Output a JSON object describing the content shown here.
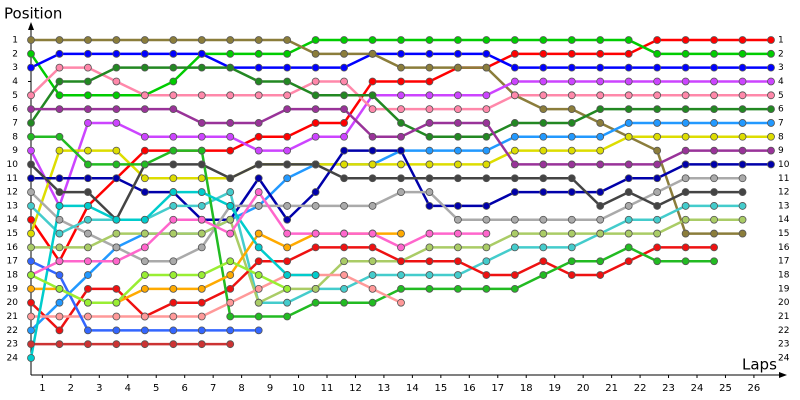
{
  "chart_data": {
    "type": "line",
    "ylabel": "Position",
    "xlabel": "Laps",
    "x": [
      0,
      1,
      2,
      3,
      4,
      5,
      6,
      7,
      8,
      9,
      10,
      11,
      12,
      13,
      14,
      15,
      16,
      17,
      18,
      19,
      20,
      21,
      22,
      23,
      24,
      25,
      26
    ],
    "xlim": [
      0,
      26
    ],
    "xticks": [
      1,
      2,
      3,
      4,
      5,
      6,
      7,
      8,
      9,
      10,
      11,
      12,
      13,
      14,
      15,
      16,
      17,
      18,
      19,
      20,
      21,
      22,
      23,
      24,
      25,
      26
    ],
    "ylim": [
      1,
      24
    ],
    "y_reversed": true,
    "yticks": [
      1,
      2,
      3,
      4,
      5,
      6,
      7,
      8,
      9,
      10,
      11,
      12,
      13,
      14,
      15,
      16,
      17,
      18,
      19,
      20,
      21,
      22,
      23,
      24
    ],
    "series": [
      {
        "color": "#ff0000",
        "values": [
          14,
          17,
          13,
          11,
          9,
          9,
          9,
          9,
          8,
          8,
          7,
          7,
          4,
          4,
          4,
          3,
          3,
          2,
          2,
          2,
          2,
          2,
          1,
          1,
          1,
          1,
          1
        ]
      },
      {
        "color": "#00cc00",
        "values": [
          2,
          5,
          5,
          5,
          5,
          4,
          2,
          2,
          2,
          2,
          1,
          1,
          1,
          1,
          1,
          1,
          1,
          1,
          1,
          1,
          1,
          1,
          2,
          2,
          2,
          2,
          2
        ]
      },
      {
        "color": "#0000ff",
        "values": [
          3,
          2,
          2,
          2,
          2,
          2,
          2,
          3,
          3,
          3,
          3,
          3,
          2,
          2,
          2,
          2,
          2,
          3,
          3,
          3,
          3,
          3,
          3,
          3,
          3,
          3,
          3
        ]
      },
      {
        "color": "#8b7d3b",
        "values": [
          1,
          1,
          1,
          1,
          1,
          1,
          1,
          1,
          1,
          1,
          2,
          2,
          2,
          3,
          3,
          3,
          3,
          5,
          6,
          6,
          7,
          8,
          9,
          15,
          15,
          15,
          null
        ]
      },
      {
        "color": "#cc44ff",
        "values": [
          9,
          13,
          7,
          7,
          8,
          8,
          8,
          8,
          9,
          9,
          8,
          8,
          5,
          5,
          5,
          5,
          5,
          4,
          4,
          4,
          4,
          4,
          4,
          4,
          4,
          4,
          4
        ]
      },
      {
        "color": "#ff88aa",
        "values": [
          5,
          3,
          3,
          4,
          5,
          5,
          5,
          5,
          5,
          5,
          4,
          4,
          6,
          6,
          6,
          6,
          6,
          5,
          5,
          5,
          5,
          5,
          5,
          5,
          5,
          5,
          5
        ]
      },
      {
        "color": "#228822",
        "values": [
          7,
          4,
          4,
          3,
          3,
          3,
          3,
          3,
          4,
          4,
          5,
          5,
          5,
          7,
          8,
          8,
          8,
          7,
          7,
          7,
          6,
          6,
          6,
          6,
          6,
          6,
          6
        ]
      },
      {
        "color": "#2299ff",
        "values": [
          22,
          20,
          18,
          16,
          15,
          15,
          15,
          14,
          13,
          11,
          10,
          10,
          10,
          9,
          9,
          9,
          9,
          8,
          8,
          8,
          8,
          7,
          7,
          7,
          7,
          7,
          7
        ]
      },
      {
        "color": "#dddd00",
        "values": [
          15,
          9,
          9,
          9,
          11,
          11,
          11,
          11,
          10,
          10,
          10,
          10,
          10,
          10,
          10,
          10,
          10,
          9,
          9,
          9,
          9,
          8,
          8,
          8,
          8,
          8,
          8
        ]
      },
      {
        "color": "#993399",
        "values": [
          6,
          6,
          6,
          6,
          6,
          6,
          7,
          7,
          7,
          6,
          6,
          6,
          8,
          8,
          7,
          7,
          7,
          10,
          10,
          10,
          10,
          10,
          10,
          9,
          9,
          9,
          9
        ]
      },
      {
        "color": "#0000aa",
        "values": [
          11,
          11,
          11,
          11,
          12,
          12,
          14,
          14,
          11,
          14,
          12,
          9,
          9,
          9,
          13,
          13,
          13,
          12,
          12,
          12,
          12,
          11,
          11,
          10,
          10,
          10,
          10
        ]
      },
      {
        "color": "#aaaaaa",
        "values": [
          12,
          14,
          15,
          16,
          17,
          17,
          16,
          13,
          13,
          13,
          13,
          13,
          13,
          12,
          12,
          14,
          14,
          14,
          14,
          14,
          14,
          13,
          12,
          11,
          11,
          11,
          null
        ]
      },
      {
        "color": "#444444",
        "values": [
          10,
          12,
          12,
          14,
          10,
          10,
          10,
          11,
          10,
          10,
          10,
          11,
          11,
          11,
          11,
          11,
          11,
          11,
          11,
          11,
          13,
          12,
          13,
          12,
          12,
          12,
          null
        ]
      },
      {
        "color": "#44cccc",
        "values": [
          13,
          15,
          14,
          14,
          14,
          13,
          13,
          12,
          20,
          20,
          19,
          19,
          18,
          18,
          18,
          18,
          17,
          16,
          16,
          16,
          15,
          14,
          14,
          13,
          13,
          13,
          null
        ]
      },
      {
        "color": "#aacc66",
        "values": [
          16,
          16,
          16,
          15,
          15,
          15,
          15,
          14,
          20,
          19,
          19,
          17,
          17,
          17,
          16,
          16,
          16,
          15,
          15,
          15,
          15,
          15,
          15,
          14,
          14,
          14,
          null
        ]
      },
      {
        "color": "#ee1111",
        "values": [
          20,
          22,
          19,
          19,
          21,
          20,
          20,
          19,
          17,
          17,
          16,
          16,
          16,
          17,
          17,
          17,
          18,
          18,
          17,
          18,
          18,
          17,
          16,
          16,
          16,
          null,
          null
        ]
      },
      {
        "color": "#22bb22",
        "values": [
          8,
          8,
          10,
          10,
          10,
          9,
          9,
          21,
          21,
          21,
          20,
          20,
          20,
          19,
          19,
          19,
          19,
          19,
          18,
          17,
          17,
          16,
          17,
          17,
          17,
          null,
          null
        ]
      },
      {
        "color": "#ffaa00",
        "values": [
          19,
          19,
          20,
          20,
          19,
          19,
          19,
          18,
          15,
          16,
          15,
          15,
          15,
          15,
          null,
          null,
          null,
          null,
          null,
          null,
          null,
          null,
          null,
          null,
          null,
          null,
          null
        ]
      },
      {
        "color": "#ff9999",
        "values": [
          21,
          21,
          21,
          21,
          21,
          21,
          21,
          20,
          19,
          18,
          18,
          18,
          19,
          20,
          null,
          null,
          null,
          null,
          null,
          null,
          null,
          null,
          null,
          null,
          null,
          null,
          null
        ]
      },
      {
        "color": "#00cccc",
        "values": [
          24,
          13,
          13,
          14,
          14,
          12,
          12,
          13,
          16,
          18,
          18,
          null,
          null,
          null,
          null,
          null,
          null,
          null,
          null,
          null,
          null,
          null,
          null,
          null,
          null,
          null,
          null
        ]
      },
      {
        "color": "#3366ff",
        "values": [
          17,
          18,
          22,
          22,
          22,
          22,
          22,
          22,
          22,
          null,
          null,
          null,
          null,
          null,
          null,
          null,
          null,
          null,
          null,
          null,
          null,
          null,
          null,
          null,
          null,
          null,
          null
        ]
      },
      {
        "color": "#ff66cc",
        "values": [
          18,
          17,
          17,
          17,
          16,
          14,
          14,
          15,
          12,
          15,
          15,
          15,
          15,
          16,
          15,
          15,
          15,
          null,
          null,
          null,
          null,
          null,
          null,
          null,
          null,
          null,
          null
        ]
      },
      {
        "color": "#99ee33",
        "values": [
          18,
          19,
          20,
          20,
          18,
          18,
          18,
          17,
          18,
          19,
          null,
          null,
          null,
          null,
          null,
          null,
          null,
          null,
          null,
          null,
          null,
          null,
          null,
          null,
          null,
          null,
          null
        ]
      },
      {
        "color": "#cc3333",
        "values": [
          23,
          23,
          23,
          23,
          23,
          23,
          23,
          23,
          null,
          null,
          null,
          null,
          null,
          null,
          null,
          null,
          null,
          null,
          null,
          null,
          null,
          null,
          null,
          null,
          null,
          null,
          null
        ]
      }
    ]
  }
}
